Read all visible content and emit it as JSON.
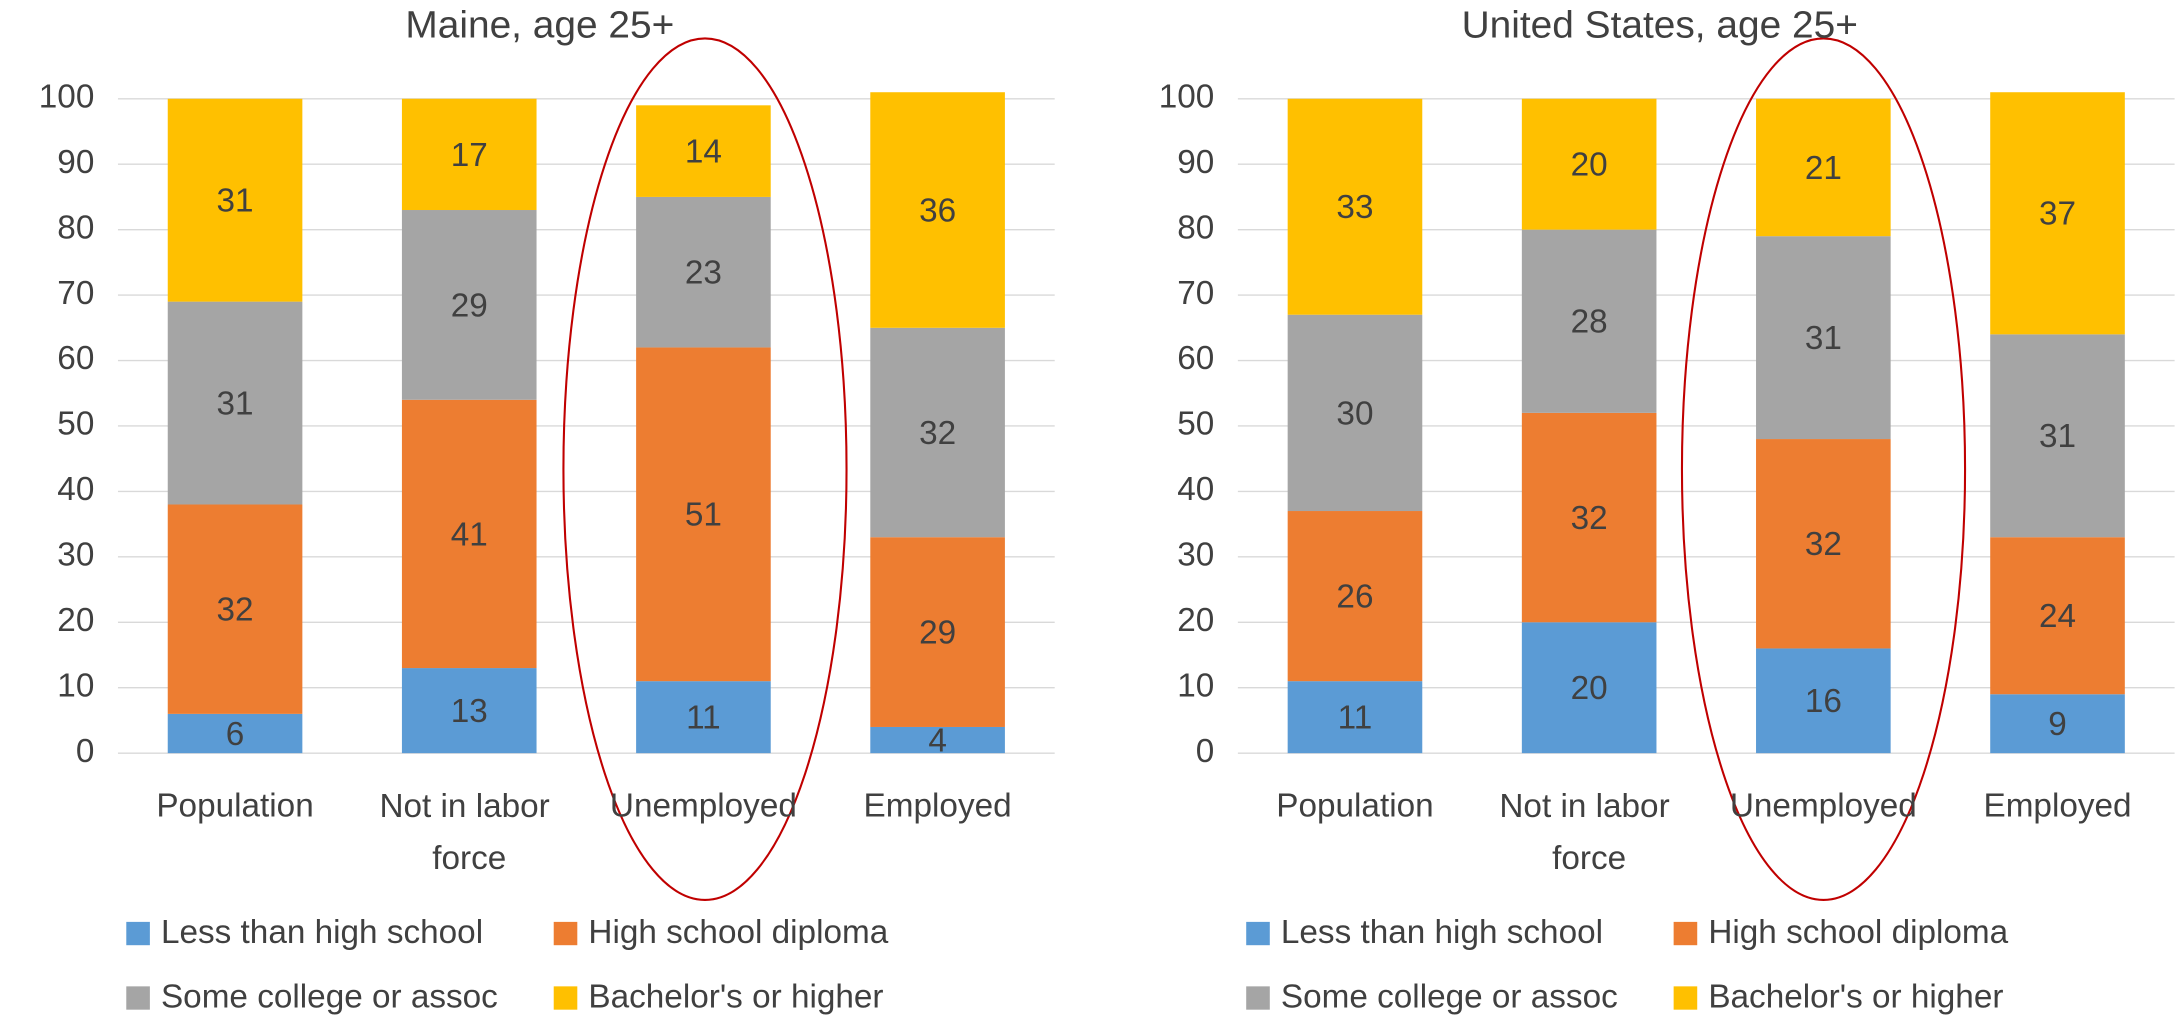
{
  "chart_data": [
    {
      "type": "stacked-bar",
      "title": "Maine, age 25+",
      "categories": [
        "Population",
        "Not in labor force",
        "Unemployed",
        "Employed"
      ],
      "series": [
        {
          "name": "Less than high school",
          "color": "#5b9bd5",
          "values": [
            6,
            13,
            11,
            4
          ]
        },
        {
          "name": "High school diploma",
          "color": "#ed7d31",
          "values": [
            32,
            41,
            51,
            29
          ]
        },
        {
          "name": "Some college or assoc",
          "color": "#a5a5a5",
          "values": [
            31,
            29,
            23,
            32
          ]
        },
        {
          "name": "Bachelor's or higher",
          "color": "#ffc000",
          "values": [
            31,
            17,
            14,
            36
          ]
        }
      ],
      "ylim": [
        0,
        100
      ],
      "yticks": [
        0,
        10,
        20,
        30,
        40,
        50,
        60,
        70,
        80,
        90,
        100
      ],
      "grid": true,
      "legend": "bottom"
    },
    {
      "type": "stacked-bar",
      "title": "United States, age 25+",
      "categories": [
        "Population",
        "Not in labor force",
        "Unemployed",
        "Employed"
      ],
      "series": [
        {
          "name": "Less than high school",
          "color": "#5b9bd5",
          "values": [
            11,
            20,
            16,
            9
          ]
        },
        {
          "name": "High school diploma",
          "color": "#ed7d31",
          "values": [
            26,
            32,
            32,
            24
          ]
        },
        {
          "name": "Some college or assoc",
          "color": "#a5a5a5",
          "values": [
            30,
            28,
            31,
            31
          ]
        },
        {
          "name": "Bachelor's or higher",
          "color": "#ffc000",
          "values": [
            33,
            20,
            21,
            37
          ]
        }
      ],
      "ylim": [
        0,
        100
      ],
      "yticks": [
        0,
        10,
        20,
        30,
        40,
        50,
        60,
        70,
        80,
        90,
        100
      ],
      "grid": true,
      "legend": "bottom"
    }
  ]
}
